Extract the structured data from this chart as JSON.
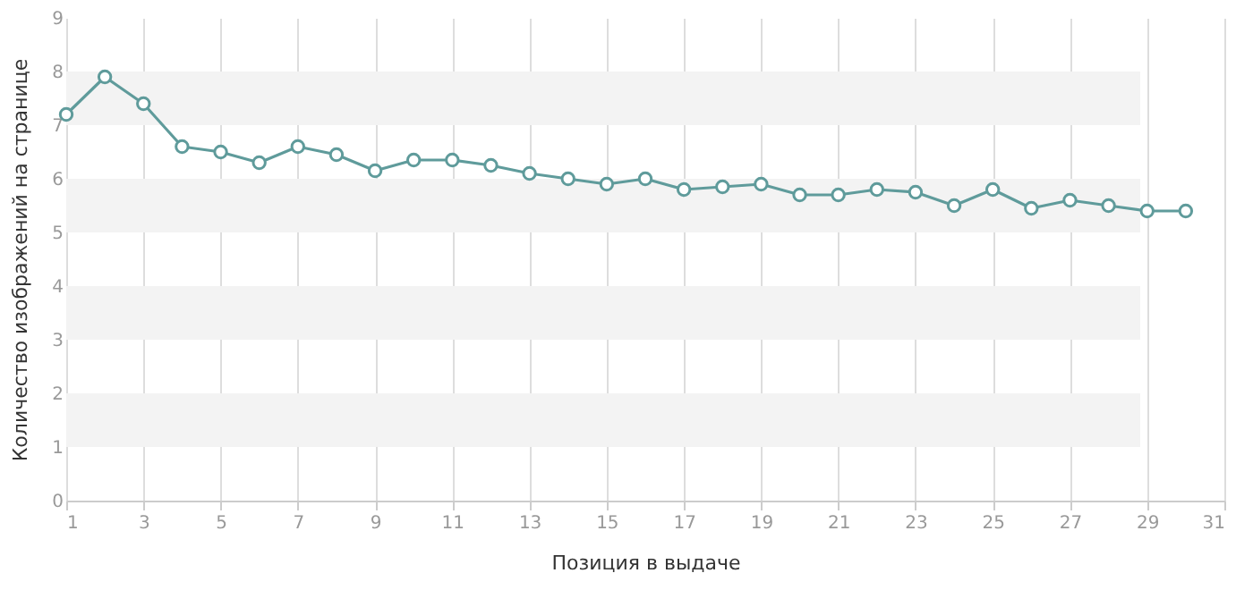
{
  "chart_data": {
    "type": "line",
    "xlabel": "Позиция в выдаче",
    "ylabel": "Количество изображений на странице",
    "x": [
      1,
      2,
      3,
      4,
      5,
      6,
      7,
      8,
      9,
      10,
      11,
      12,
      13,
      14,
      15,
      16,
      17,
      18,
      19,
      20,
      21,
      22,
      23,
      24,
      25,
      26,
      27,
      28,
      29,
      30
    ],
    "series": [
      {
        "color": "#5f9b9b",
        "values": [
          7.2,
          7.9,
          7.4,
          6.6,
          6.5,
          6.3,
          6.6,
          6.45,
          6.15,
          6.35,
          6.35,
          6.25,
          6.1,
          6.0,
          5.9,
          6.0,
          5.8,
          5.85,
          5.9,
          5.7,
          5.7,
          5.8,
          5.75,
          5.5,
          5.8,
          5.45,
          5.6,
          5.5,
          5.4,
          5.4
        ]
      }
    ],
    "xlim": [
      1,
      31
    ],
    "xticks": [
      1,
      3,
      5,
      7,
      9,
      11,
      13,
      15,
      17,
      19,
      21,
      23,
      25,
      27,
      29,
      31
    ],
    "ylim": [
      0,
      9
    ],
    "yticks": [
      0,
      1,
      2,
      3,
      4,
      5,
      6,
      7,
      8,
      9
    ],
    "bands": [
      {
        "axis": "y",
        "from": 1,
        "to": 2,
        "color": "#f3f3f3"
      },
      {
        "axis": "y",
        "from": 3,
        "to": 4,
        "color": "#f3f3f3"
      },
      {
        "axis": "y",
        "from": 5,
        "to": 6,
        "color": "#f3f3f3"
      },
      {
        "axis": "y",
        "from": 7,
        "to": 8,
        "color": "#f3f3f3"
      }
    ],
    "grid": "x",
    "marker": "circle",
    "line_style": "solid"
  }
}
